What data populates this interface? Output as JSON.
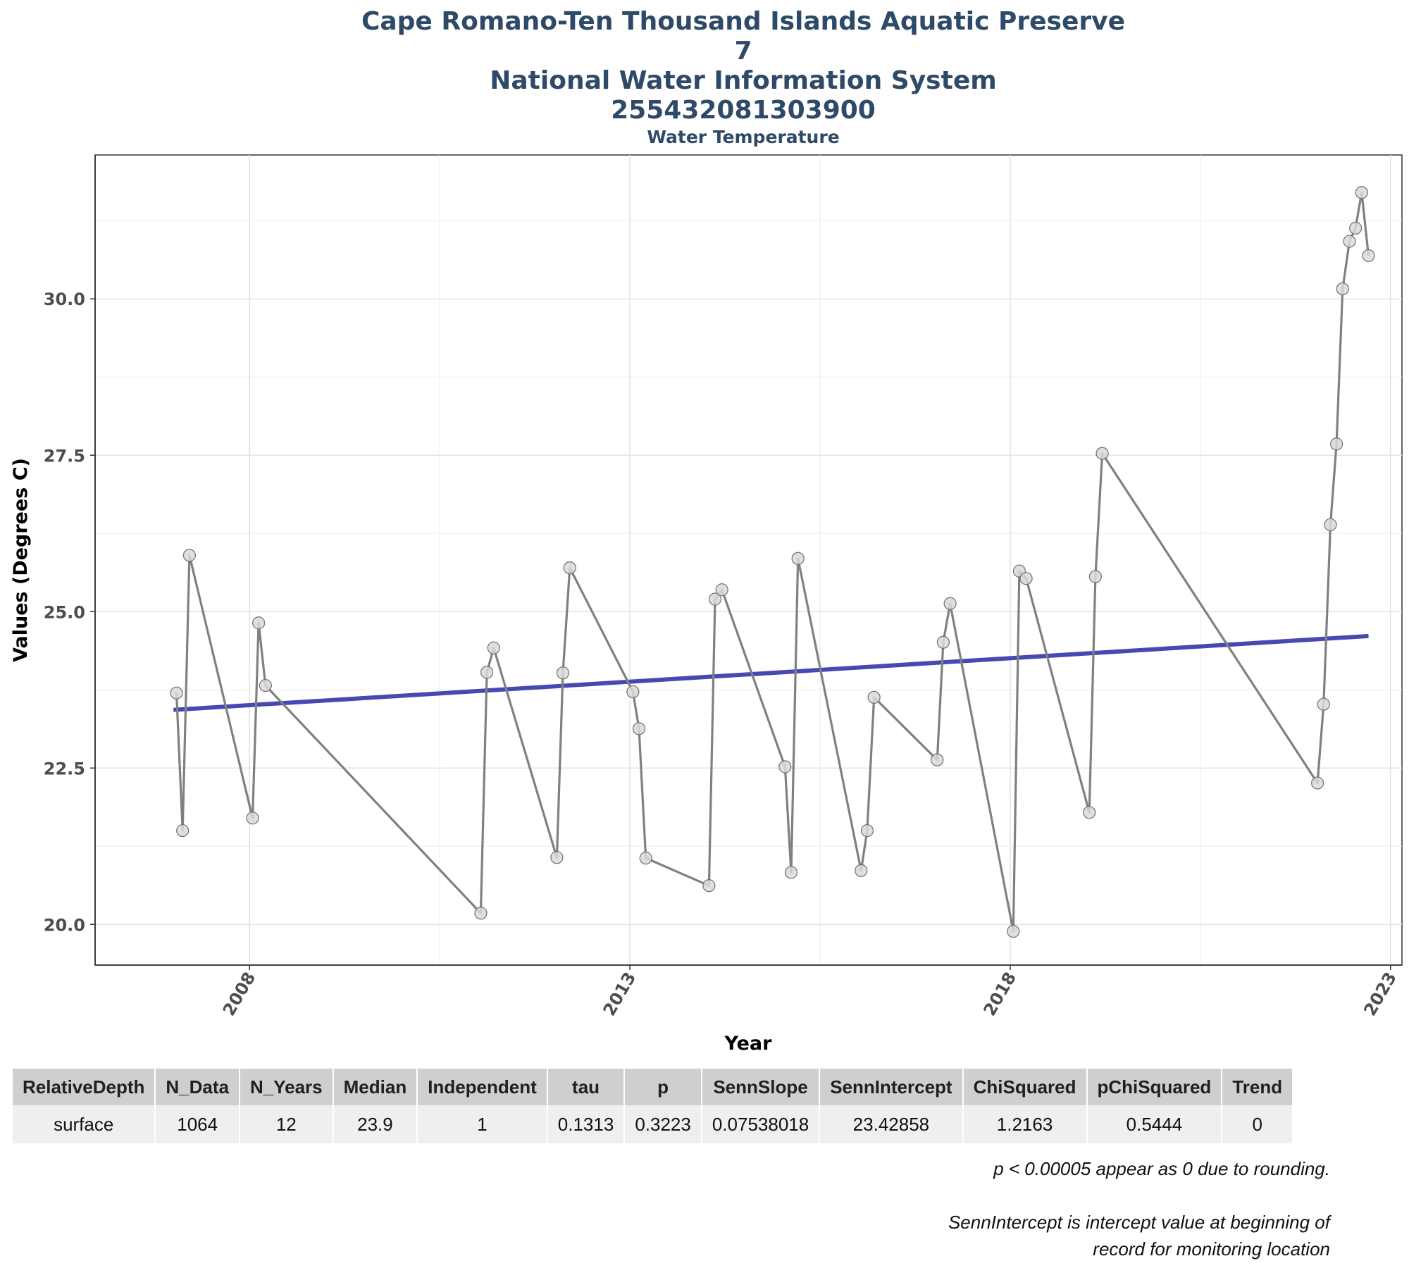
{
  "title_lines": [
    "Cape Romano-Ten Thousand Islands Aquatic Preserve",
    "7",
    "National Water Information System",
    "255432081303900"
  ],
  "subtitle": "Water Temperature",
  "chart_data": {
    "type": "line",
    "xlabel": "Year",
    "ylabel": "Values (Degrees C)",
    "xlim": [
      2005.97,
      2023.15
    ],
    "ylim": [
      19.35,
      32.3
    ],
    "x_ticks": [
      2008,
      2013,
      2018,
      2023
    ],
    "y_ticks": [
      20.0,
      22.5,
      25.0,
      27.5,
      30.0
    ],
    "y_tick_labels": [
      "20.0",
      "22.5",
      "25.0",
      "27.5",
      "30.0"
    ],
    "grid": true,
    "series": [
      {
        "kind": "observations",
        "color": "#808080",
        "marker_fill": "#d9d9d9",
        "points": [
          {
            "x": 2007.04,
            "y": 23.7
          },
          {
            "x": 2007.12,
            "y": 21.5
          },
          {
            "x": 2007.21,
            "y": 25.9
          },
          {
            "x": 2008.04,
            "y": 21.7
          },
          {
            "x": 2008.12,
            "y": 24.82
          },
          {
            "x": 2008.21,
            "y": 23.82
          },
          {
            "x": 2011.04,
            "y": 20.18
          },
          {
            "x": 2011.12,
            "y": 24.03
          },
          {
            "x": 2011.21,
            "y": 24.42
          },
          {
            "x": 2012.04,
            "y": 21.07
          },
          {
            "x": 2012.12,
            "y": 24.02
          },
          {
            "x": 2012.21,
            "y": 25.7
          },
          {
            "x": 2013.04,
            "y": 23.72
          },
          {
            "x": 2013.12,
            "y": 23.13
          },
          {
            "x": 2013.21,
            "y": 21.06
          },
          {
            "x": 2014.04,
            "y": 20.62
          },
          {
            "x": 2014.12,
            "y": 25.2
          },
          {
            "x": 2014.21,
            "y": 25.35
          },
          {
            "x": 2015.04,
            "y": 22.52
          },
          {
            "x": 2015.12,
            "y": 20.83
          },
          {
            "x": 2015.21,
            "y": 25.85
          },
          {
            "x": 2016.04,
            "y": 20.86
          },
          {
            "x": 2016.12,
            "y": 21.5
          },
          {
            "x": 2016.21,
            "y": 23.63
          },
          {
            "x": 2017.04,
            "y": 22.63
          },
          {
            "x": 2017.12,
            "y": 24.51
          },
          {
            "x": 2017.21,
            "y": 25.13
          },
          {
            "x": 2018.04,
            "y": 19.89
          },
          {
            "x": 2018.12,
            "y": 25.65
          },
          {
            "x": 2018.21,
            "y": 25.53
          },
          {
            "x": 2019.04,
            "y": 21.79
          },
          {
            "x": 2019.12,
            "y": 25.56
          },
          {
            "x": 2019.21,
            "y": 27.53
          },
          {
            "x": 2022.04,
            "y": 22.26
          },
          {
            "x": 2022.12,
            "y": 23.52
          },
          {
            "x": 2022.21,
            "y": 26.39
          },
          {
            "x": 2022.29,
            "y": 27.68
          },
          {
            "x": 2022.37,
            "y": 30.16
          },
          {
            "x": 2022.46,
            "y": 30.92
          },
          {
            "x": 2022.54,
            "y": 31.13
          },
          {
            "x": 2022.62,
            "y": 31.7
          },
          {
            "x": 2022.71,
            "y": 30.69
          }
        ]
      },
      {
        "kind": "trend",
        "color": "#3f3fb0",
        "points": [
          {
            "x": 2007.0,
            "y": 23.43
          },
          {
            "x": 2022.71,
            "y": 24.61
          }
        ]
      }
    ]
  },
  "table": {
    "headers": [
      "RelativeDepth",
      "N_Data",
      "N_Years",
      "Median",
      "Independent",
      "tau",
      "p",
      "SennSlope",
      "SennIntercept",
      "ChiSquared",
      "pChiSquared",
      "Trend"
    ],
    "row": [
      "surface",
      "1064",
      "12",
      "23.9",
      "1",
      "0.1313",
      "0.3223",
      "0.07538018",
      "23.42858",
      "1.2163",
      "0.5444",
      "0"
    ]
  },
  "notes": {
    "rounding": "p < 0.00005 appear as 0 due to rounding.",
    "intercept_line1": "SennIntercept is intercept value at beginning of",
    "intercept_line2": "record for monitoring location"
  }
}
